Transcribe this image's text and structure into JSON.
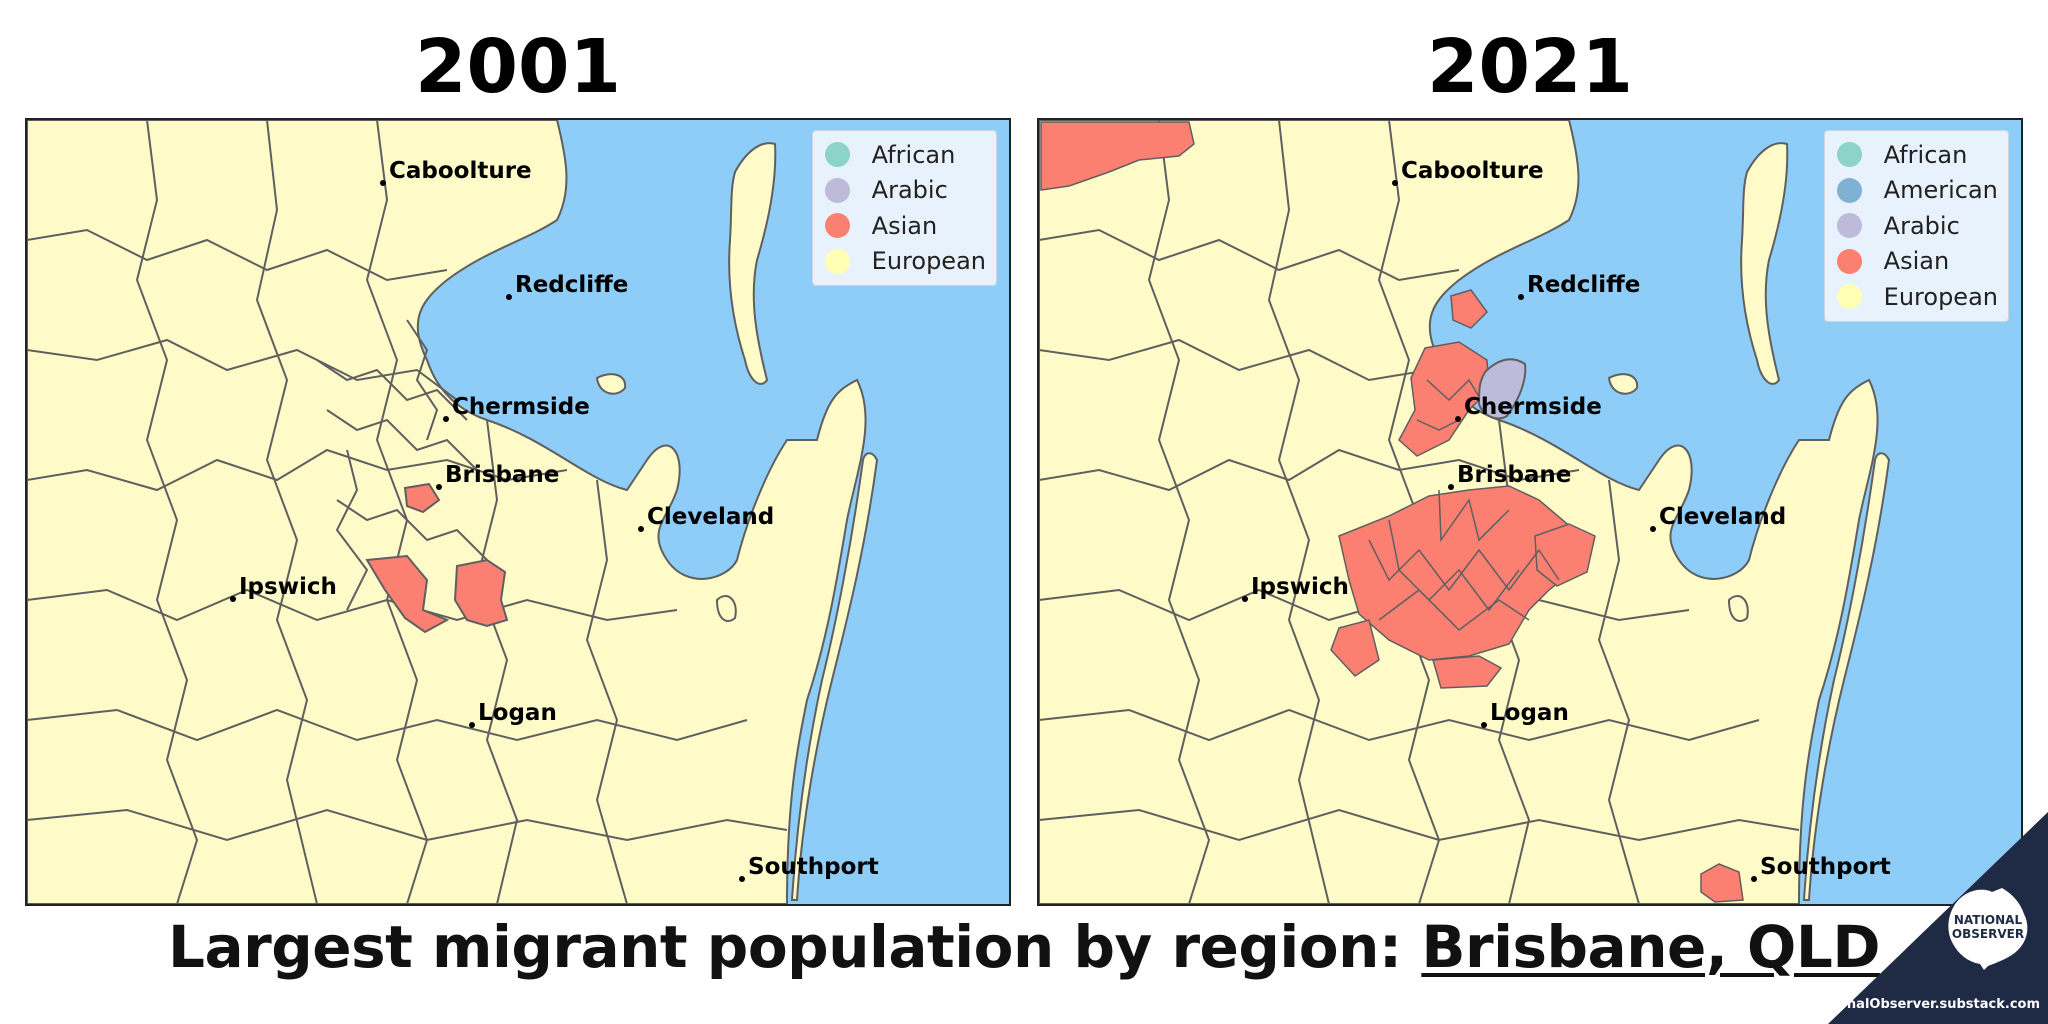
{
  "panels": [
    {
      "year": "2001",
      "legend": [
        {
          "label": "African",
          "color": "#8dd3c7"
        },
        {
          "label": "Arabic",
          "color": "#bebada"
        },
        {
          "label": "Asian",
          "color": "#fb8072"
        },
        {
          "label": "European",
          "color": "#ffffb3"
        }
      ]
    },
    {
      "year": "2021",
      "legend": [
        {
          "label": "African",
          "color": "#8dd3c7"
        },
        {
          "label": "American",
          "color": "#80b1d3"
        },
        {
          "label": "Arabic",
          "color": "#bebada"
        },
        {
          "label": "Asian",
          "color": "#fb8072"
        },
        {
          "label": "European",
          "color": "#ffffb3"
        }
      ]
    }
  ],
  "cities": [
    "Caboolture",
    "Redcliffe",
    "Chermside",
    "Brisbane",
    "Cleveland",
    "Ipswich",
    "Logan",
    "Southport"
  ],
  "headline": {
    "prefix": "Largest migrant population by region: ",
    "place": "Brisbane, QLD"
  },
  "brand": {
    "logo_line1": "NATIONAL",
    "logo_line2": "OBSERVER",
    "url": "NationalObserver.substack.com",
    "corner_color": "#1f2a44"
  },
  "colors": {
    "water": "#8dcdf7",
    "land": "#fffbc9",
    "border": "#5f5f5f"
  }
}
